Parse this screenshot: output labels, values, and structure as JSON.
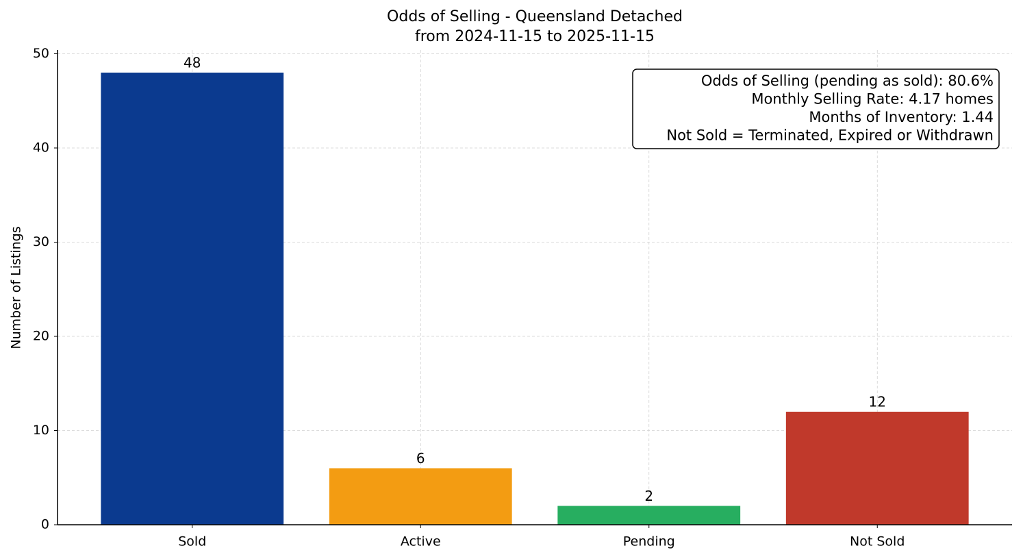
{
  "chart_data": {
    "type": "bar",
    "title": "Odds of Selling - Queensland Detached",
    "subtitle": "from 2024-11-15 to 2025-11-15",
    "y_label": "Number of Listings",
    "categories": [
      "Sold",
      "Active",
      "Pending",
      "Not Sold"
    ],
    "values": [
      48,
      6,
      2,
      12
    ],
    "colors": [
      "#0b3a8f",
      "#f39c12",
      "#27ae60",
      "#c0392b"
    ],
    "ylim": [
      0,
      50.4
    ],
    "yticks": [
      0,
      10,
      20,
      30,
      40,
      50
    ],
    "grid": true,
    "annotation": [
      "Odds of Selling (pending as sold): 80.6%",
      "Monthly Selling Rate: 4.17 homes",
      "Months of Inventory: 1.44",
      "Not Sold = Terminated, Expired or Withdrawn"
    ]
  }
}
